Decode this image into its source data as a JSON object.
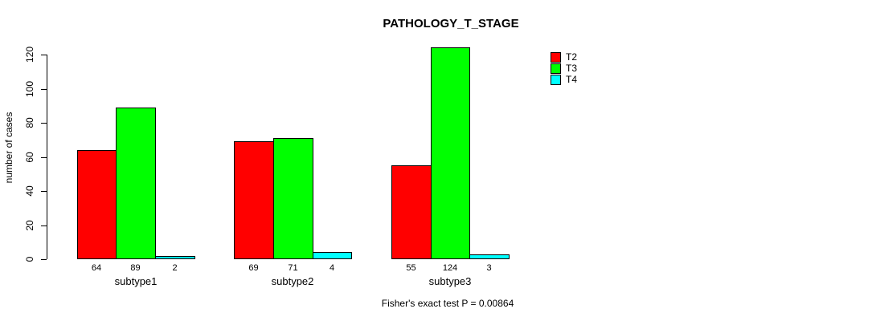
{
  "chart_data": {
    "type": "bar",
    "title": "PATHOLOGY_T_STAGE",
    "ylabel": "number of cases",
    "xlabel": "",
    "categories": [
      "subtype1",
      "subtype2",
      "subtype3"
    ],
    "series": [
      {
        "name": "T2",
        "color": "#ff0000",
        "values": [
          64,
          69,
          55
        ]
      },
      {
        "name": "T3",
        "color": "#00ff00",
        "values": [
          89,
          71,
          124
        ]
      },
      {
        "name": "T4",
        "color": "#00ffff",
        "values": [
          2,
          4,
          3
        ]
      }
    ],
    "bar_value_labels": [
      [
        "64",
        "89",
        "2"
      ],
      [
        "69",
        "71",
        "4"
      ],
      [
        "55",
        "124",
        "3"
      ]
    ],
    "yticks": [
      0,
      20,
      40,
      60,
      80,
      100,
      120
    ],
    "ylim": [
      0,
      120
    ],
    "grid": false,
    "legend_position": "top-right",
    "caption": "Fisher's exact test P = 0.00864"
  }
}
